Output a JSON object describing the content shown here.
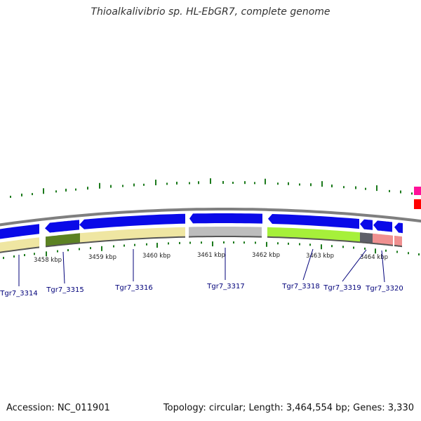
{
  "title": "Thioalkalivibrio sp. HL-EbGR7, complete genome",
  "footer": {
    "accession": "Accession: NC_011901",
    "topology": "Topology: circular; Length: 3,464,554 bp; Genes: 3,330"
  },
  "colors": {
    "backbone": "#7f7f7f",
    "cds_arrow": "#0a0ae8",
    "tick_green": "#1c7a1c",
    "gene_label": "#00007a",
    "cog_khaki": "#efe6a2",
    "cog_olive": "#5c8223",
    "cog_gray": "#bdbdbd",
    "cog_lime": "#a6f03a",
    "cog_darkgray": "#5e6068",
    "cog_pink": "#f09090",
    "edge_magenta": "#ff1199",
    "edge_red": "#ff0000"
  },
  "kbp_ticks": [
    "3458 kbp",
    "3459 kbp",
    "3460 kbp",
    "3461 kbp",
    "3462 kbp",
    "3463 kbp",
    "3464 kbp"
  ],
  "genes": [
    "Tgr7_3314",
    "Tgr7_3315",
    "Tgr7_3316",
    "Tgr7_3317",
    "Tgr7_3318",
    "Tgr7_3319",
    "Tgr7_3320"
  ]
}
